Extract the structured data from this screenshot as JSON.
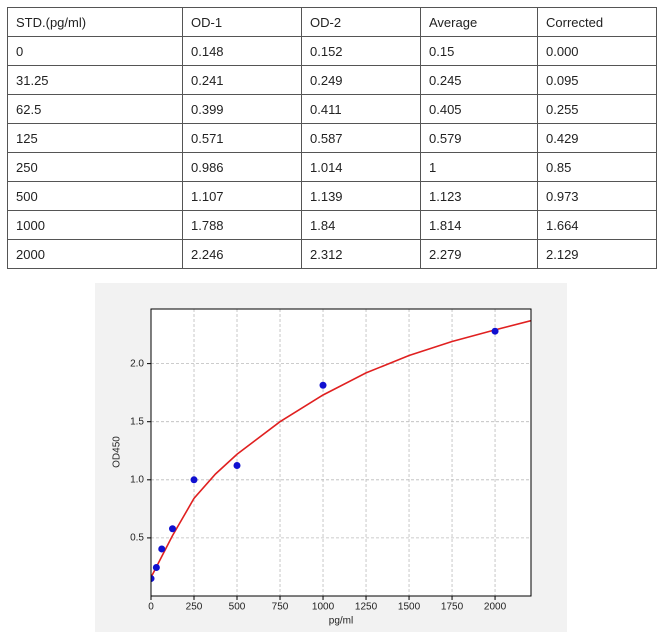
{
  "table": {
    "header": [
      "STD.(pg/ml)",
      "OD-1",
      "OD-2",
      "Average",
      "Corrected"
    ],
    "rows": [
      [
        "0",
        "0.148",
        "0.152",
        "0.15",
        "0.000"
      ],
      [
        "31.25",
        "0.241",
        "0.249",
        "0.245",
        "0.095"
      ],
      [
        "62.5",
        "0.399",
        "0.411",
        "0.405",
        "0.255"
      ],
      [
        "125",
        "0.571",
        "0.587",
        "0.579",
        "0.429"
      ],
      [
        "250",
        "0.986",
        "1.014",
        "1",
        "0.85"
      ],
      [
        "500",
        "1.107",
        "1.139",
        "1.123",
        "0.973"
      ],
      [
        "1000",
        "1.788",
        "1.84",
        "1.814",
        "1.664"
      ],
      [
        "2000",
        "2.246",
        "2.312",
        "2.279",
        "2.129"
      ]
    ]
  },
  "chart_data": {
    "type": "scatter",
    "x_label": "pg/ml",
    "y_label": "OD450",
    "xlim": [
      0,
      2209
    ],
    "ylim": [
      0,
      2.47
    ],
    "xticks": [
      0,
      250,
      500,
      750,
      1000,
      1250,
      1500,
      1750,
      2000
    ],
    "yticks": [
      0.5,
      {
        "value": 1,
        "label": "1.0"
      },
      1.5,
      {
        "value": 2,
        "label": "2.0"
      }
    ],
    "grid": true,
    "series": [
      {
        "type": "scatter",
        "color": "#1010d0",
        "x": [
          0,
          31.25,
          62.5,
          125,
          250,
          500,
          1000,
          2000
        ],
        "values": [
          0.15,
          0.245,
          0.405,
          0.579,
          1,
          1.123,
          1.814,
          2.279
        ]
      },
      {
        "type": "line",
        "color": "#e02020",
        "x": [
          0,
          31.25,
          62.5,
          125,
          250,
          375,
          500,
          750,
          1000,
          1250,
          1500,
          1750,
          2000,
          2209
        ],
        "values": [
          0.16,
          0.25,
          0.34,
          0.52,
          0.84,
          1.05,
          1.22,
          1.5,
          1.73,
          1.92,
          2.07,
          2.19,
          2.29,
          2.37
        ]
      }
    ]
  }
}
